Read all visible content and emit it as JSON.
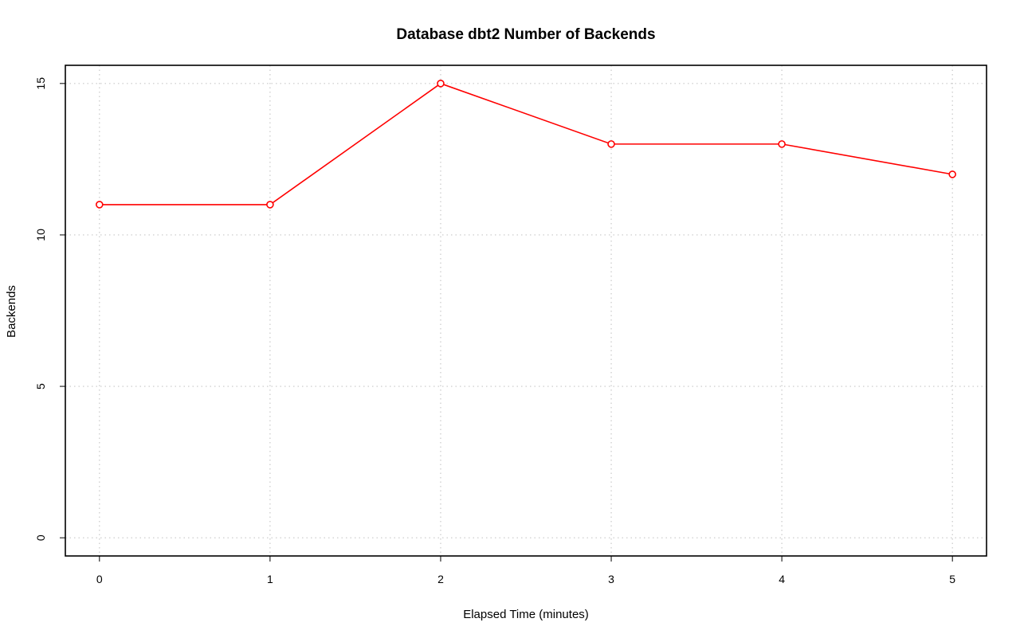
{
  "chart_data": {
    "type": "line",
    "title": "Database dbt2 Number of Backends",
    "xlabel": "Elapsed Time (minutes)",
    "ylabel": "Backends",
    "x": [
      0,
      1,
      2,
      3,
      4,
      5
    ],
    "series": [
      {
        "values": [
          11,
          11,
          15,
          13,
          13,
          12
        ],
        "color": "#ff0000"
      }
    ],
    "xlim": [
      -0.2,
      5.2
    ],
    "ylim": [
      -0.6,
      15.6
    ],
    "xticks": [
      0,
      1,
      2,
      3,
      4,
      5
    ],
    "yticks": [
      0,
      5,
      10,
      15
    ],
    "grid": true,
    "grid_color": "#c8c8c8",
    "legend": "none"
  }
}
